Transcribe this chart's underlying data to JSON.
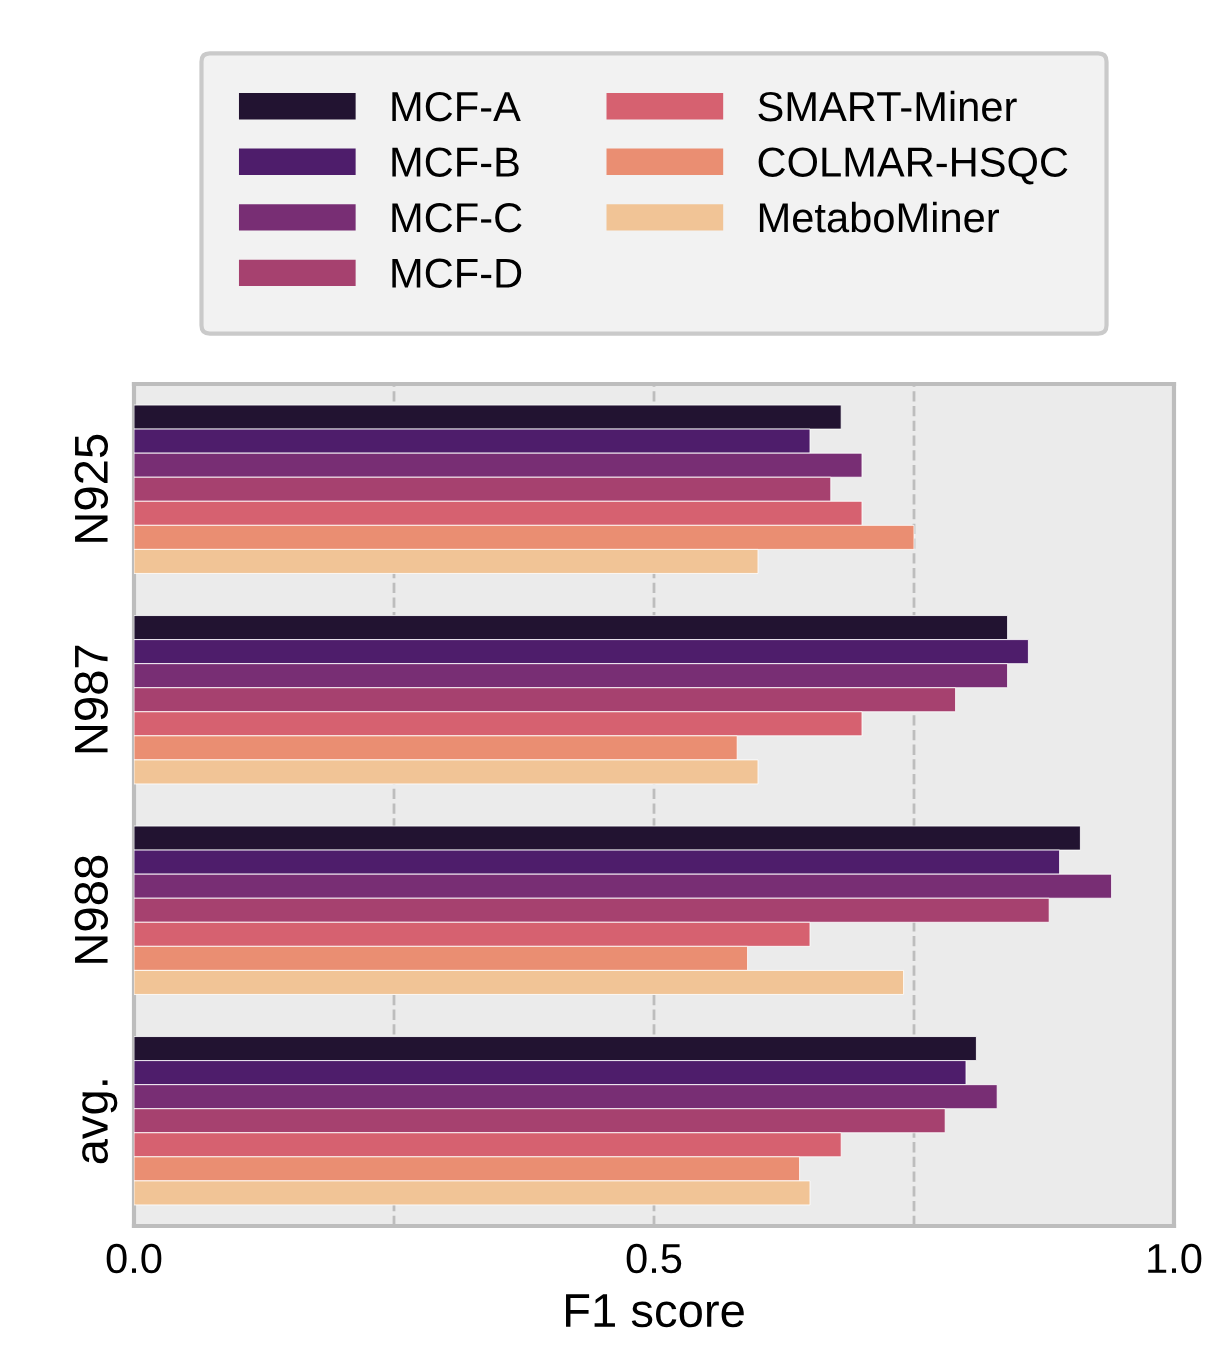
{
  "chart_data": {
    "type": "bar",
    "orientation": "horizontal",
    "xlabel": "F1 score",
    "categories": [
      "N925",
      "N987",
      "N988",
      "avg."
    ],
    "series": [
      {
        "name": "MCF-A",
        "color": "#221331",
        "values": [
          0.68,
          0.84,
          0.91,
          0.81
        ]
      },
      {
        "name": "MCF-B",
        "color": "#4e1d6b",
        "values": [
          0.65,
          0.86,
          0.89,
          0.8
        ]
      },
      {
        "name": "MCF-C",
        "color": "#782e74",
        "values": [
          0.7,
          0.84,
          0.94,
          0.83
        ]
      },
      {
        "name": "MCF-D",
        "color": "#a6416f",
        "values": [
          0.67,
          0.79,
          0.88,
          0.78
        ]
      },
      {
        "name": "SMART-Miner",
        "color": "#d66170",
        "values": [
          0.7,
          0.7,
          0.65,
          0.68
        ]
      },
      {
        "name": "COLMAR-HSQC",
        "color": "#ea8e72",
        "values": [
          0.75,
          0.58,
          0.59,
          0.64
        ]
      },
      {
        "name": "MetaboMiner",
        "color": "#f1c496",
        "values": [
          0.6,
          0.6,
          0.74,
          0.65
        ]
      }
    ],
    "xlim": [
      0,
      1
    ],
    "xticks": [
      {
        "value": 0,
        "label": "0.0"
      },
      {
        "value": 0.25,
        "label": null
      },
      {
        "value": 0.5,
        "label": "0.5"
      },
      {
        "value": 0.75,
        "label": null
      },
      {
        "value": 1,
        "label": "1.0"
      }
    ],
    "grid": "x",
    "legend": "top"
  }
}
